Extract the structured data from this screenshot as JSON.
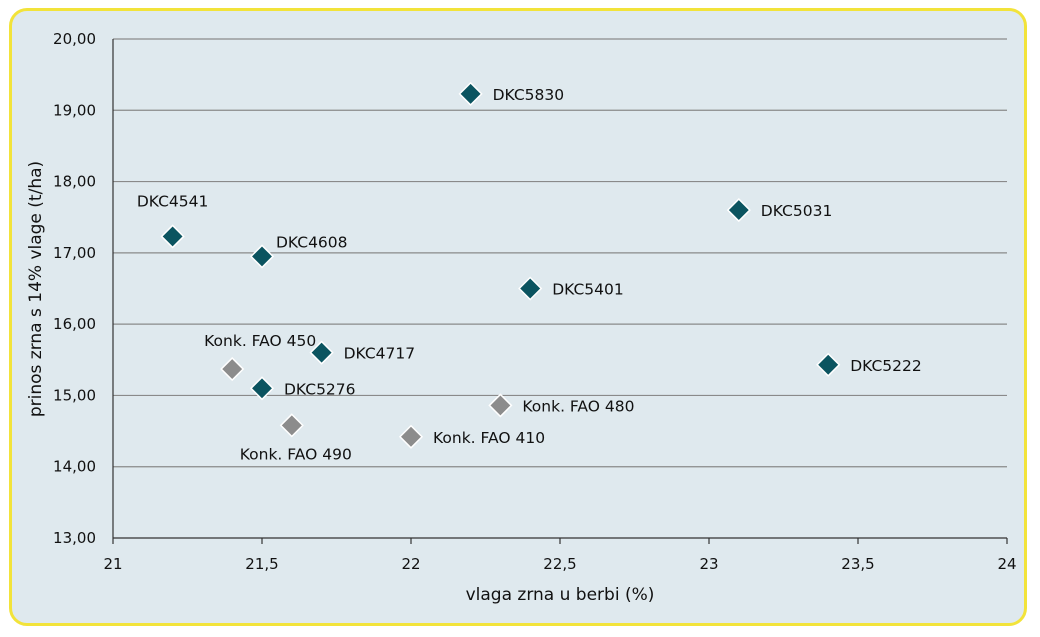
{
  "chart_data": {
    "type": "scatter",
    "xlabel": "vlaga zrna u berbi (%)",
    "ylabel": "prinos zrna s 14% vlage (t/ha)",
    "xlim": [
      21,
      24
    ],
    "ylim": [
      13,
      20
    ],
    "x_ticks": [
      "21",
      "21,5",
      "22",
      "22,5",
      "23",
      "23,5",
      "24"
    ],
    "y_ticks": [
      "13,00",
      "14,00",
      "15,00",
      "16,00",
      "17,00",
      "18,00",
      "19,00",
      "20,00"
    ],
    "grid": "horizontal",
    "colors": {
      "dkc": "#0b5460",
      "konk": "#8c8c8c",
      "frame": "#f2e33a",
      "background": "#dfe9ee",
      "grid": "#8a8a8a"
    },
    "series": [
      {
        "group": "dkc",
        "points": [
          {
            "label": "DKC5830",
            "x": 22.2,
            "y": 19.23
          },
          {
            "label": "DKC4541",
            "x": 21.2,
            "y": 17.23
          },
          {
            "label": "DKC4608",
            "x": 21.5,
            "y": 16.95
          },
          {
            "label": "DKC5031",
            "x": 23.1,
            "y": 17.6
          },
          {
            "label": "DKC5401",
            "x": 22.4,
            "y": 16.5
          },
          {
            "label": "DKC4717",
            "x": 21.7,
            "y": 15.6
          },
          {
            "label": "DKC5276",
            "x": 21.5,
            "y": 15.1
          },
          {
            "label": "DKC5222",
            "x": 23.4,
            "y": 15.43
          }
        ]
      },
      {
        "group": "konk",
        "points": [
          {
            "label": "Konk. FAO 450",
            "x": 21.4,
            "y": 15.37
          },
          {
            "label": "Konk. FAO 490",
            "x": 21.6,
            "y": 14.58
          },
          {
            "label": "Konk. FAO 410",
            "x": 22.0,
            "y": 14.42
          },
          {
            "label": "Konk. FAO 480",
            "x": 22.3,
            "y": 14.86
          }
        ]
      }
    ]
  }
}
